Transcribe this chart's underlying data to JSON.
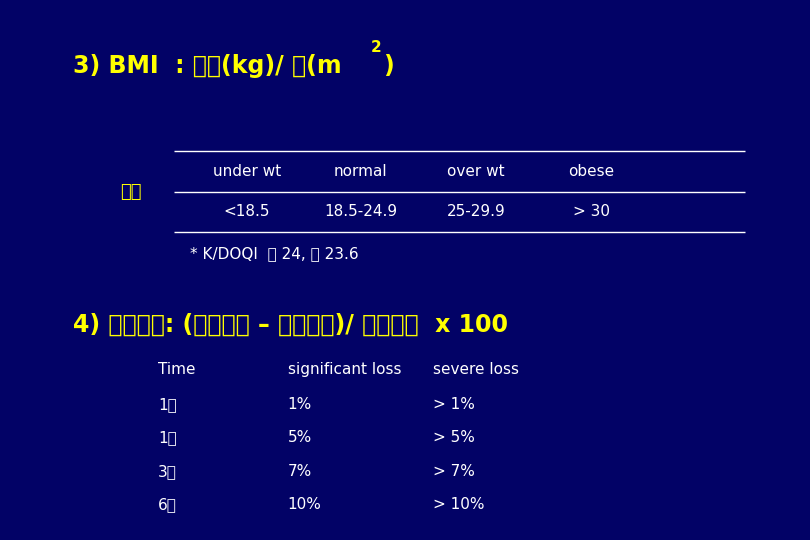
{
  "bg_color": "#020266",
  "text_color_yellow": "#FFFF00",
  "text_color_white": "#FFFFFF",
  "title_main": "3) BMI  : 체중(kg)/ 키(m",
  "title_sup": "2",
  "title_end": ")",
  "section2_title": "4) 체중변화: (이전체중 – 현재체중)/ 이전체중  x 100",
  "bmi_label": "평가",
  "bmi_headers": [
    "under wt",
    "normal",
    "over wt",
    "obese"
  ],
  "bmi_values": [
    "<18.5",
    "18.5-24.9",
    "25-29.9",
    "> 30"
  ],
  "bmi_note": "* K/DOQI  남 24, 여 23.6",
  "table2_headers": [
    "Time",
    "significant loss",
    "severe loss"
  ],
  "table2_rows": [
    [
      "1주",
      "1%",
      "> 1%"
    ],
    [
      "1달",
      "5%",
      "> 5%"
    ],
    [
      "3달",
      "7%",
      "> 7%"
    ],
    [
      "6달",
      "10%",
      "> 10%"
    ]
  ],
  "figsize": [
    8.1,
    5.4
  ],
  "dpi": 100
}
